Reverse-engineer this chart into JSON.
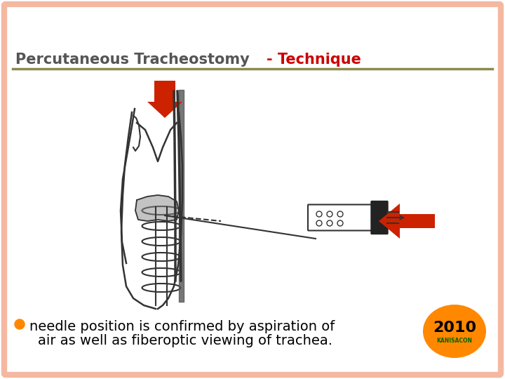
{
  "bg_color": "#ffffff",
  "border_color": "#f4b8a0",
  "title_left": "Percutaneous Tracheostomy",
  "title_left_color": "#555555",
  "title_right": "- Technique",
  "title_right_color": "#cc0000",
  "title_line_color": "#8b8b4b",
  "bullet_color": "#ff8800",
  "bullet_text_line1": "needle position is confirmed by aspiration of",
  "bullet_text_line2": "air as well as fiberoptic viewing of trachea.",
  "bullet_text_color": "#000000",
  "badge_color": "#ff8800",
  "badge_text": "2010",
  "badge_subtext": "KANISACON",
  "arrow_down_color": "#cc2200",
  "arrow_left_color": "#cc2200"
}
